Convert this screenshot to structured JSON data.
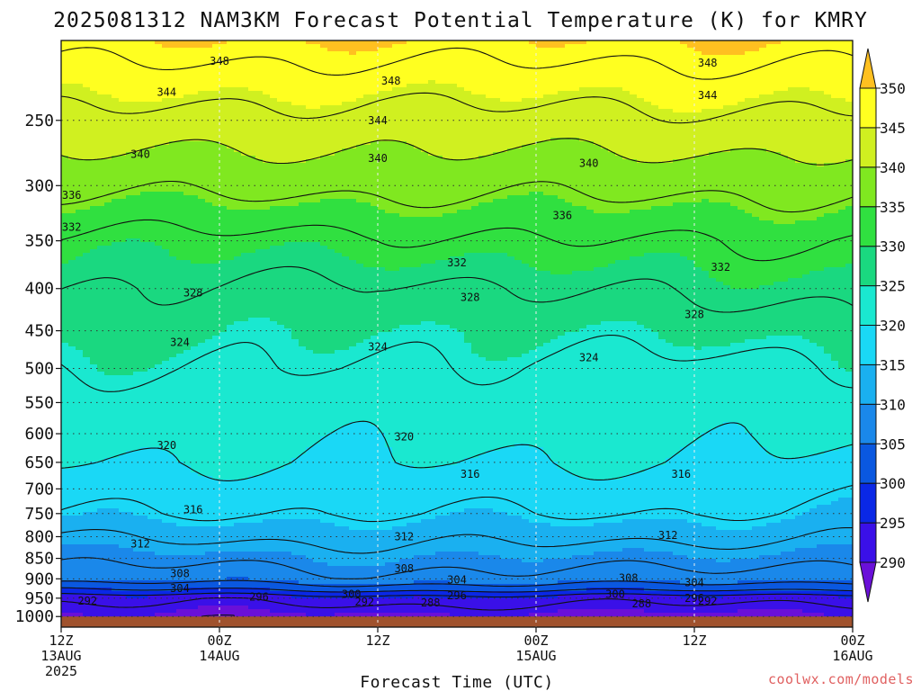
{
  "chart_data": {
    "type": "heatmap",
    "title": "2025081312 NAM3KM Forecast Potential Temperature (K) for KMRY",
    "xlabel": "Forecast Time (UTC)",
    "ylabel": "",
    "credit": "coolwx.com/models",
    "y_scale": "log-pressure",
    "ylim": [
      1030,
      200
    ],
    "y_ticks": [
      1000,
      950,
      900,
      850,
      800,
      750,
      700,
      650,
      600,
      550,
      500,
      450,
      400,
      350,
      300,
      250
    ],
    "y_tick_labels": [
      "1000",
      "950",
      "900",
      "850",
      "800",
      "750",
      "700",
      "650",
      "600",
      "550",
      "500",
      "450",
      "400",
      "350",
      "300",
      "250"
    ],
    "x_ticks": [
      {
        "hour": 0,
        "line1": "12Z",
        "line2": "13AUG",
        "line3": "2025"
      },
      {
        "hour": 12,
        "line1": "00Z",
        "line2": "14AUG",
        "line3": ""
      },
      {
        "hour": 24,
        "line1": "12Z",
        "line2": "",
        "line3": ""
      },
      {
        "hour": 36,
        "line1": "00Z",
        "line2": "15AUG",
        "line3": ""
      },
      {
        "hour": 48,
        "line1": "12Z",
        "line2": "",
        "line3": ""
      },
      {
        "hour": 60,
        "line1": "00Z",
        "line2": "16AUG",
        "line3": ""
      }
    ],
    "grid": true,
    "surface_pressure": 1000,
    "colorbar": {
      "levels": [
        290,
        295,
        300,
        305,
        310,
        315,
        320,
        325,
        330,
        335,
        340,
        345,
        350
      ],
      "labels": [
        "290",
        "295",
        "300",
        "305",
        "310",
        "315",
        "320",
        "325",
        "330",
        "335",
        "340",
        "345",
        "350"
      ],
      "colors": [
        "#6a10d8",
        "#3a10e8",
        "#0a28e6",
        "#0a58e0",
        "#1a88ea",
        "#1ab0f0",
        "#1ad8f6",
        "#1ae8d0",
        "#1ad880",
        "#30e040",
        "#80e820",
        "#d0f020",
        "#ffff20",
        "#ffc020"
      ]
    },
    "contour_levels": [
      288,
      292,
      296,
      300,
      304,
      308,
      312,
      316,
      320,
      324,
      328,
      332,
      336,
      340,
      344,
      348
    ],
    "profile_times": [
      0,
      12,
      24,
      36,
      48,
      60
    ],
    "profiles": [
      {
        "p": [
          1000,
          950,
          925,
          900,
          850,
          800,
          750,
          700,
          650,
          600,
          550,
          500,
          450,
          400,
          350,
          300,
          250,
          200
        ],
        "theta": [
          289,
          293,
          300,
          306,
          309,
          312,
          316,
          318,
          320,
          321,
          322,
          324,
          326,
          328,
          331,
          337,
          343,
          350
        ]
      },
      {
        "p": [
          1000,
          950,
          925,
          900,
          850,
          800,
          750,
          700,
          650,
          600,
          550,
          500,
          450,
          400,
          350,
          300,
          250,
          200
        ],
        "theta": [
          289,
          293,
          301,
          306,
          309,
          313,
          316,
          318,
          320,
          321,
          322,
          324,
          326,
          328,
          331,
          337,
          343,
          350
        ]
      },
      {
        "p": [
          1000,
          950,
          925,
          900,
          850,
          800,
          750,
          700,
          650,
          600,
          550,
          500,
          450,
          400,
          350,
          300,
          250,
          200
        ],
        "theta": [
          289,
          294,
          302,
          307,
          310,
          313,
          316,
          318,
          320,
          321,
          322,
          324,
          325,
          327,
          331,
          337,
          342,
          350
        ]
      },
      {
        "p": [
          1000,
          950,
          925,
          900,
          850,
          800,
          750,
          700,
          650,
          600,
          550,
          500,
          450,
          400,
          350,
          300,
          250,
          200
        ],
        "theta": [
          289,
          294,
          302,
          307,
          310,
          313,
          316,
          318,
          320,
          321,
          322,
          323,
          325,
          328,
          332,
          337,
          343,
          350
        ]
      },
      {
        "p": [
          1000,
          950,
          925,
          900,
          850,
          800,
          750,
          700,
          650,
          600,
          550,
          500,
          450,
          400,
          350,
          300,
          250,
          200
        ],
        "theta": [
          289,
          293,
          301,
          306,
          309,
          313,
          316,
          318,
          320,
          321,
          322,
          323,
          326,
          329,
          332,
          337,
          343,
          350
        ]
      },
      {
        "p": [
          1000,
          950,
          925,
          900,
          850,
          800,
          750,
          700,
          650,
          600,
          550,
          500,
          450,
          400,
          350,
          300,
          250,
          200
        ],
        "theta": [
          289,
          293,
          301,
          306,
          309,
          312,
          315,
          317,
          319,
          321,
          322,
          324,
          326,
          329,
          332,
          337,
          343,
          350
        ]
      }
    ],
    "contour_labels": [
      {
        "value": 348,
        "hour": 12,
        "p": 212
      },
      {
        "value": 348,
        "hour": 25,
        "p": 224
      },
      {
        "value": 348,
        "hour": 49,
        "p": 213
      },
      {
        "value": 344,
        "hour": 8,
        "p": 231
      },
      {
        "value": 344,
        "hour": 24,
        "p": 250
      },
      {
        "value": 344,
        "hour": 49,
        "p": 233
      },
      {
        "value": 340,
        "hour": 6,
        "p": 275
      },
      {
        "value": 340,
        "hour": 24,
        "p": 278
      },
      {
        "value": 340,
        "hour": 40,
        "p": 282
      },
      {
        "value": 336,
        "hour": 0.8,
        "p": 308
      },
      {
        "value": 336,
        "hour": 38,
        "p": 326
      },
      {
        "value": 332,
        "hour": 0.8,
        "p": 337
      },
      {
        "value": 332,
        "hour": 30,
        "p": 372
      },
      {
        "value": 332,
        "hour": 50,
        "p": 377
      },
      {
        "value": 328,
        "hour": 10,
        "p": 405
      },
      {
        "value": 328,
        "hour": 31,
        "p": 410
      },
      {
        "value": 328,
        "hour": 48,
        "p": 430
      },
      {
        "value": 324,
        "hour": 9,
        "p": 465
      },
      {
        "value": 324,
        "hour": 24,
        "p": 471
      },
      {
        "value": 324,
        "hour": 40,
        "p": 485
      },
      {
        "value": 320,
        "hour": 8,
        "p": 620
      },
      {
        "value": 320,
        "hour": 26,
        "p": 605
      },
      {
        "value": 316,
        "hour": 10,
        "p": 742
      },
      {
        "value": 316,
        "hour": 31,
        "p": 672
      },
      {
        "value": 316,
        "hour": 47,
        "p": 672
      },
      {
        "value": 312,
        "hour": 6,
        "p": 816
      },
      {
        "value": 312,
        "hour": 26,
        "p": 800
      },
      {
        "value": 312,
        "hour": 46,
        "p": 797
      },
      {
        "value": 308,
        "hour": 9,
        "p": 887
      },
      {
        "value": 308,
        "hour": 26,
        "p": 875
      },
      {
        "value": 308,
        "hour": 43,
        "p": 898
      },
      {
        "value": 304,
        "hour": 9,
        "p": 925
      },
      {
        "value": 304,
        "hour": 30,
        "p": 903
      },
      {
        "value": 304,
        "hour": 48,
        "p": 910
      },
      {
        "value": 300,
        "hour": 22,
        "p": 940
      },
      {
        "value": 300,
        "hour": 42,
        "p": 940
      },
      {
        "value": 296,
        "hour": 15,
        "p": 947
      },
      {
        "value": 296,
        "hour": 30,
        "p": 943
      },
      {
        "value": 296,
        "hour": 48,
        "p": 950
      },
      {
        "value": 292,
        "hour": 2,
        "p": 958
      },
      {
        "value": 292,
        "hour": 23,
        "p": 960
      },
      {
        "value": 292,
        "hour": 49,
        "p": 958
      },
      {
        "value": 288,
        "hour": 28,
        "p": 962
      },
      {
        "value": 288,
        "hour": 44,
        "p": 965
      }
    ]
  }
}
